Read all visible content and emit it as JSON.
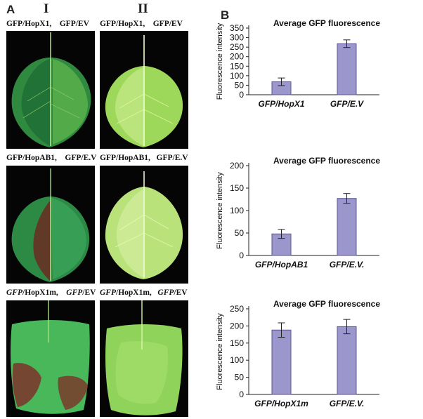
{
  "panels": {
    "a_label": "A",
    "b_label": "B"
  },
  "columns": {
    "col1": "I",
    "col2": "II"
  },
  "leaf_rows": [
    {
      "left_caption_bold": "GFP/HopX1,",
      "left_caption_tail": "GFP/EV",
      "right_caption_bold": "GFP/HopX1,",
      "right_caption_tail": "GFP/EV"
    },
    {
      "left_caption_bold": "GFP/HopAB1,",
      "left_caption_tail": "GFP/E.V",
      "right_caption_bold": "GFP/HopAB1,",
      "right_caption_tail": "GFP/E.V"
    },
    {
      "left_caption_italic": "GFP",
      "left_caption_bold": "/HopX1m,",
      "left_caption_tail_italic": "GFP",
      "left_caption_tail": "/EV",
      "right_caption_italic": "GFP",
      "right_caption_bold": "/HopX1m,",
      "right_caption_tail_italic": "GFP",
      "right_caption_tail": "/EV"
    }
  ],
  "colors": {
    "bar_fill": "#9b96cc",
    "bar_stroke": "#5a5590",
    "axis": "#222222",
    "leaf_green_bright": "#7fcf3a",
    "leaf_green_dim": "#3f8f3a",
    "leaf_red": "#8a3b2a",
    "photo_bg": "#050505"
  },
  "chart_data": [
    {
      "type": "bar",
      "title": "Average GFP fluorescence",
      "ylabel": "Fluorescence intensity",
      "categories": [
        "GFP/HopX1",
        "GFP/E.V"
      ],
      "values": [
        68,
        268
      ],
      "errors": [
        20,
        20
      ],
      "ylim": [
        0,
        350
      ],
      "yticks": [
        "0",
        "50",
        "100",
        "150",
        "200",
        "250",
        "300",
        "350"
      ]
    },
    {
      "type": "bar",
      "title": "Average GFP fluorescence",
      "ylabel": "Fluorescence intensity",
      "categories": [
        "GFP/HopAB1",
        "GFP/E.V."
      ],
      "values": [
        48,
        127
      ],
      "errors": [
        10,
        11
      ],
      "ylim": [
        0,
        200
      ],
      "yticks": [
        "0",
        "50",
        "100",
        "150",
        "200"
      ]
    },
    {
      "type": "bar",
      "title": "Average GFP fluorescence",
      "ylabel": "Fluorescence intensity",
      "categories": [
        "GFP/HopX1m",
        "GFP/E.V."
      ],
      "values": [
        188,
        198
      ],
      "errors": [
        21,
        21
      ],
      "ylim": [
        0,
        250
      ],
      "yticks": [
        "0",
        "50",
        "100",
        "150",
        "200",
        "250"
      ]
    }
  ]
}
